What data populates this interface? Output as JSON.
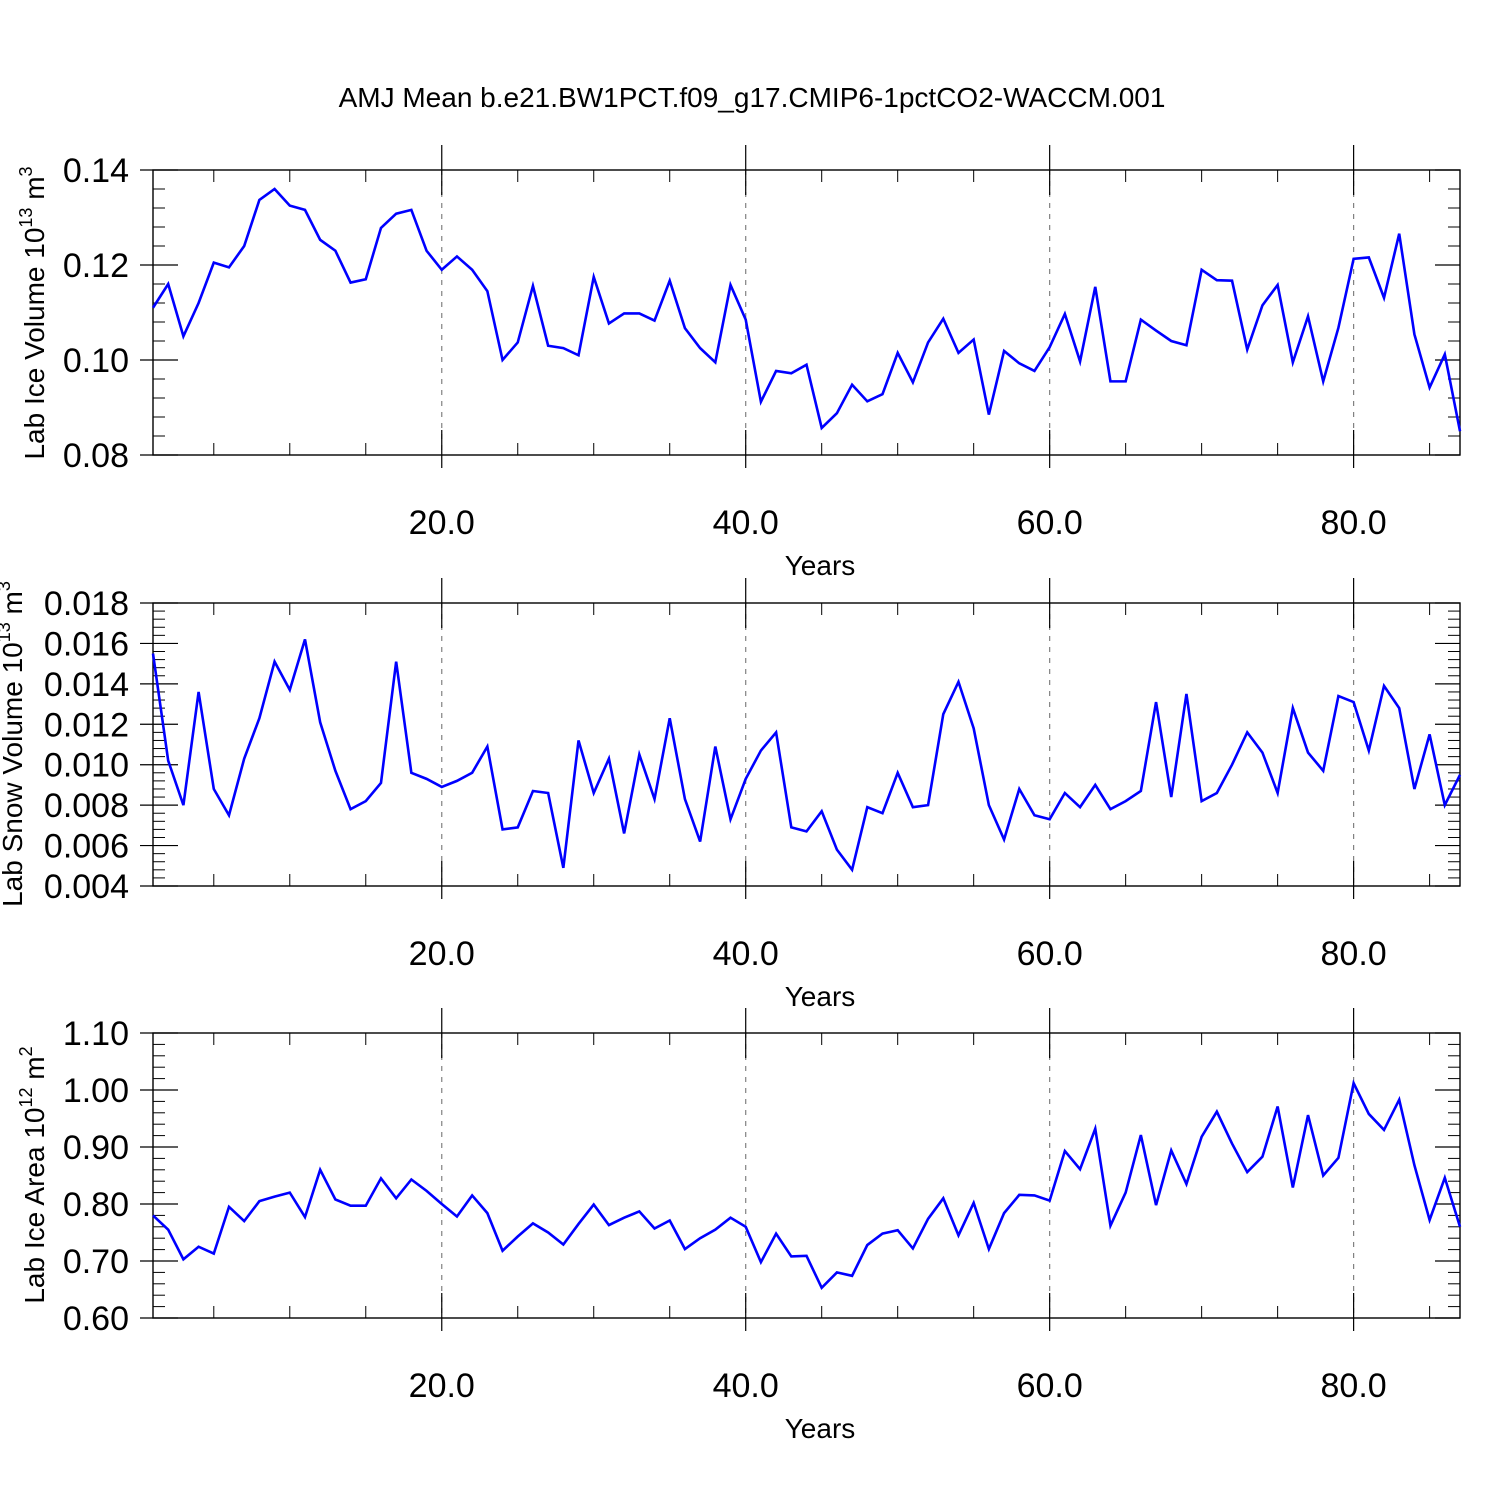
{
  "title": "AMJ Mean b.e21.BW1PCT.f09_g17.CMIP6-1pctCO2-WACCM.001",
  "colors": {
    "line": "#0000ff",
    "frame": "#000000",
    "grid": "#808080"
  },
  "chart_data": [
    {
      "type": "line",
      "ylabel": "Lab Ice Volume 10",
      "ylabel_sup": "13",
      "ylabel_unit": " m",
      "ylabel_unit_sup": "3",
      "xlabel": "Years",
      "xlim": [
        1,
        87
      ],
      "ylim": [
        0.08,
        0.14
      ],
      "yticks": [
        0.08,
        0.1,
        0.12,
        0.14
      ],
      "yticklabels": [
        "0.08",
        "0.10",
        "0.12",
        "0.14"
      ],
      "xticks": [
        20,
        40,
        60,
        80
      ],
      "xticklabels": [
        "20.0",
        "40.0",
        "60.0",
        "80.0"
      ],
      "x_start": 1,
      "values": [
        0.111,
        0.116,
        0.105,
        0.112,
        0.1205,
        0.1195,
        0.124,
        0.1337,
        0.136,
        0.1325,
        0.1316,
        0.1253,
        0.123,
        0.1163,
        0.117,
        0.1278,
        0.1308,
        0.1316,
        0.123,
        0.119,
        0.1218,
        0.119,
        0.1145,
        0.1,
        0.1037,
        0.1156,
        0.103,
        0.1025,
        0.101,
        0.1175,
        0.1077,
        0.1098,
        0.1098,
        0.1083,
        0.1167,
        0.1067,
        0.1025,
        0.0995,
        0.1158,
        0.1085,
        0.0912,
        0.0977,
        0.0972,
        0.099,
        0.0857,
        0.0888,
        0.0948,
        0.0913,
        0.0928,
        0.1015,
        0.0953,
        0.1037,
        0.1087,
        0.1015,
        0.1043,
        0.0885,
        0.1019,
        0.0993,
        0.0977,
        0.1027,
        0.1097,
        0.0997,
        0.1154,
        0.0955,
        0.0955,
        0.1085,
        0.1062,
        0.104,
        0.1031,
        0.119,
        0.1168,
        0.1167,
        0.1022,
        0.1115,
        0.1158,
        0.0995,
        0.1092,
        0.0955,
        0.1068,
        0.1213,
        0.1216,
        0.1131,
        0.1266,
        0.1054,
        0.0942,
        0.1012,
        0.085
      ]
    },
    {
      "type": "line",
      "ylabel": "Lab Snow Volume 10",
      "ylabel_sup": "13",
      "ylabel_unit": " m",
      "ylabel_unit_sup": "3",
      "xlabel": "Years",
      "xlim": [
        1,
        87
      ],
      "ylim": [
        0.004,
        0.018
      ],
      "yticks": [
        0.004,
        0.006,
        0.008,
        0.01,
        0.012,
        0.014,
        0.016,
        0.018
      ],
      "yticklabels": [
        "0.004",
        "0.006",
        "0.008",
        "0.010",
        "0.012",
        "0.014",
        "0.016",
        "0.018"
      ],
      "xticks": [
        20,
        40,
        60,
        80
      ],
      "xticklabels": [
        "20.0",
        "40.0",
        "60.0",
        "80.0"
      ],
      "x_start": 1,
      "values": [
        0.0155,
        0.0102,
        0.008,
        0.0136,
        0.0088,
        0.0075,
        0.0103,
        0.0123,
        0.0151,
        0.0137,
        0.0162,
        0.0121,
        0.0097,
        0.0078,
        0.0082,
        0.0091,
        0.0151,
        0.0096,
        0.0093,
        0.0089,
        0.0092,
        0.0096,
        0.0109,
        0.0068,
        0.0069,
        0.0087,
        0.0086,
        0.0049,
        0.0112,
        0.0086,
        0.0103,
        0.0066,
        0.0105,
        0.0083,
        0.0123,
        0.0083,
        0.0062,
        0.0109,
        0.0073,
        0.0093,
        0.0107,
        0.0116,
        0.0069,
        0.0067,
        0.0077,
        0.0058,
        0.0048,
        0.0079,
        0.0076,
        0.0096,
        0.0079,
        0.008,
        0.0125,
        0.0141,
        0.0118,
        0.008,
        0.0063,
        0.0088,
        0.0075,
        0.0073,
        0.0086,
        0.0079,
        0.009,
        0.0078,
        0.0082,
        0.0087,
        0.0131,
        0.0084,
        0.0135,
        0.0082,
        0.0086,
        0.01,
        0.0116,
        0.0106,
        0.0086,
        0.0128,
        0.0106,
        0.0097,
        0.0134,
        0.0131,
        0.0107,
        0.0139,
        0.0128,
        0.0088,
        0.0115,
        0.008,
        0.0095
      ]
    },
    {
      "type": "line",
      "ylabel": "Lab Ice Area 10",
      "ylabel_sup": "12",
      "ylabel_unit": " m",
      "ylabel_unit_sup": "2",
      "xlabel": "Years",
      "xlim": [
        1,
        87
      ],
      "ylim": [
        0.6,
        1.1
      ],
      "yticks": [
        0.6,
        0.7,
        0.8,
        0.9,
        1.0,
        1.1
      ],
      "yticklabels": [
        "0.60",
        "0.70",
        "0.80",
        "0.90",
        "1.00",
        "1.10"
      ],
      "xticks": [
        20,
        40,
        60,
        80
      ],
      "xticklabels": [
        "20.0",
        "40.0",
        "60.0",
        "80.0"
      ],
      "x_start": 1,
      "values": [
        0.78,
        0.755,
        0.703,
        0.725,
        0.713,
        0.795,
        0.77,
        0.805,
        0.813,
        0.82,
        0.777,
        0.86,
        0.808,
        0.797,
        0.797,
        0.845,
        0.81,
        0.843,
        0.823,
        0.8,
        0.778,
        0.815,
        0.784,
        0.718,
        0.743,
        0.766,
        0.75,
        0.729,
        0.765,
        0.799,
        0.763,
        0.776,
        0.787,
        0.757,
        0.771,
        0.721,
        0.74,
        0.755,
        0.776,
        0.76,
        0.698,
        0.748,
        0.708,
        0.709,
        0.653,
        0.68,
        0.674,
        0.728,
        0.748,
        0.754,
        0.722,
        0.774,
        0.81,
        0.745,
        0.802,
        0.721,
        0.784,
        0.816,
        0.815,
        0.806,
        0.893,
        0.861,
        0.932,
        0.762,
        0.82,
        0.921,
        0.798,
        0.894,
        0.835,
        0.918,
        0.962,
        0.906,
        0.856,
        0.883,
        0.971,
        0.829,
        0.956,
        0.85,
        0.881,
        1.012,
        0.958,
        0.93,
        0.983,
        0.868,
        0.772,
        0.846,
        0.76
      ]
    }
  ]
}
